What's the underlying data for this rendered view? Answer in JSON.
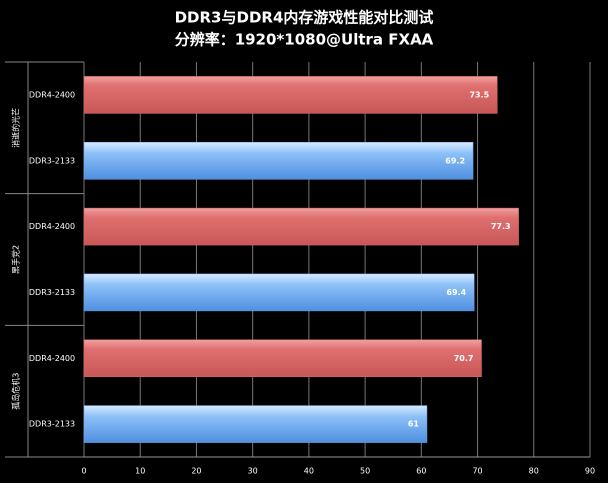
{
  "chart_data": {
    "type": "bar",
    "orientation": "horizontal",
    "title": "DDR3与DDR4内存游戏性能对比测试",
    "subtitle": "分辨率：1920*1080@Ultra FXAA",
    "categories": [
      "消逝的光芒",
      "黑手党2",
      "孤岛危机3"
    ],
    "series": [
      {
        "name": "DDR4-2400",
        "color": "#d96a6a",
        "values": [
          73.5,
          77.3,
          70.7
        ]
      },
      {
        "name": "DDR3-2133",
        "color": "#6aaaf0",
        "values": [
          69.2,
          69.4,
          61
        ]
      }
    ],
    "xlim": [
      0,
      90
    ],
    "xticks": [
      0,
      10,
      20,
      30,
      40,
      50,
      60,
      70,
      80,
      90
    ],
    "grid": true
  }
}
